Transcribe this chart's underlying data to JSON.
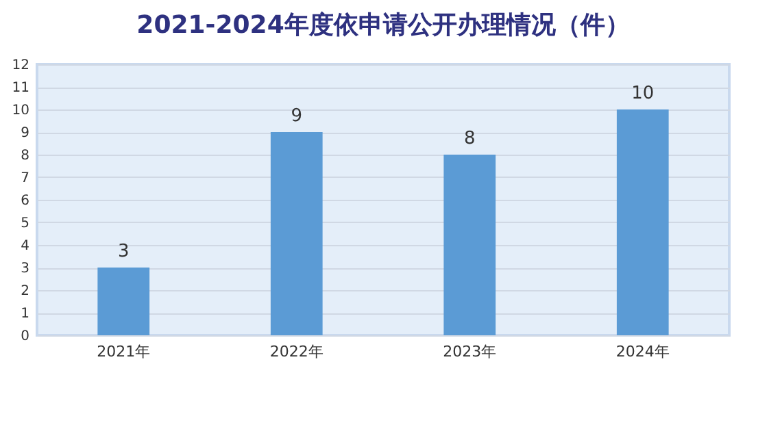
{
  "chart_data": {
    "type": "bar",
    "title": "2021-2024年度依申请公开办理情况（件）",
    "categories": [
      "2021年",
      "2022年",
      "2023年",
      "2024年"
    ],
    "values": [
      3,
      9,
      8,
      10
    ],
    "color": "#5b9bd5",
    "ylim": [
      0,
      12
    ],
    "yticks": [
      0,
      1,
      2,
      3,
      4,
      5,
      6,
      7,
      8,
      9,
      10,
      11,
      12
    ],
    "grid": "y",
    "data_labels": true
  }
}
